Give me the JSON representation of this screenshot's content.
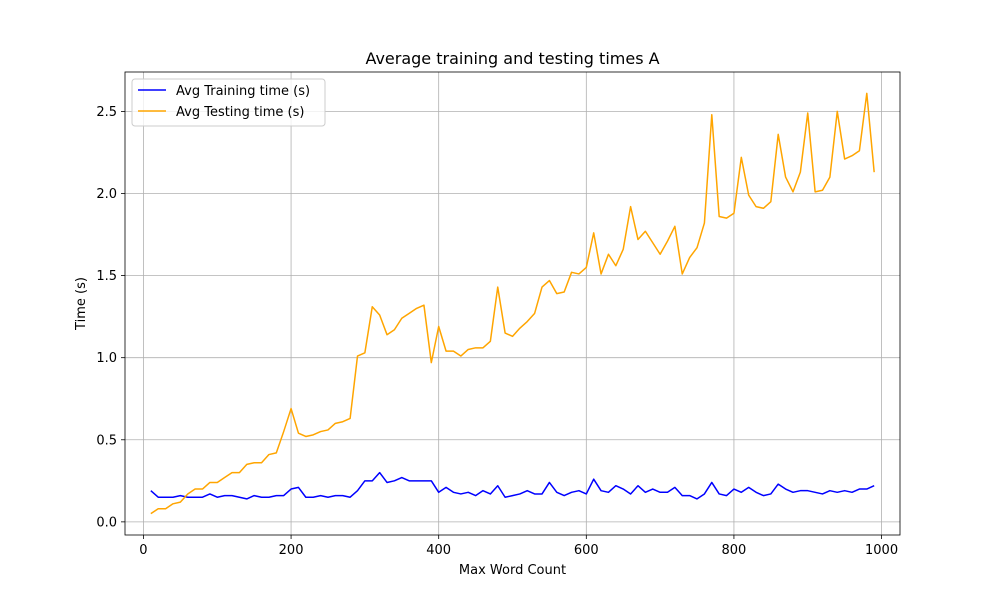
{
  "chart_data": {
    "type": "line",
    "title": "Average training and testing times A",
    "xlabel": "Max Word Count",
    "ylabel": "Time (s)",
    "xlim": [
      -25,
      1025
    ],
    "ylim": [
      -0.08,
      2.74
    ],
    "xticks": [
      0,
      200,
      400,
      600,
      800,
      1000
    ],
    "xtick_labels": [
      "0",
      "200",
      "400",
      "600",
      "800",
      "1000"
    ],
    "yticks": [
      0.0,
      0.5,
      1.0,
      1.5,
      2.0,
      2.5
    ],
    "ytick_labels": [
      "0.0",
      "0.5",
      "1.0",
      "1.5",
      "2.0",
      "2.5"
    ],
    "grid": true,
    "legend_position": "top-left",
    "x": [
      10,
      20,
      30,
      40,
      50,
      60,
      70,
      80,
      90,
      100,
      110,
      120,
      130,
      140,
      150,
      160,
      170,
      180,
      190,
      200,
      210,
      220,
      230,
      240,
      250,
      260,
      270,
      280,
      290,
      300,
      310,
      320,
      330,
      340,
      350,
      360,
      370,
      380,
      390,
      400,
      410,
      420,
      430,
      440,
      450,
      460,
      470,
      480,
      490,
      500,
      510,
      520,
      530,
      540,
      550,
      560,
      570,
      580,
      590,
      600,
      610,
      620,
      630,
      640,
      650,
      660,
      670,
      680,
      690,
      700,
      710,
      720,
      730,
      740,
      750,
      760,
      770,
      780,
      790,
      800,
      810,
      820,
      830,
      840,
      850,
      860,
      870,
      880,
      890,
      900,
      910,
      920,
      930,
      940,
      950,
      960,
      970,
      980,
      990
    ],
    "series": [
      {
        "name": "Avg Training time (s)",
        "color": "#0000ff",
        "values": [
          0.19,
          0.15,
          0.15,
          0.15,
          0.16,
          0.15,
          0.15,
          0.15,
          0.17,
          0.15,
          0.16,
          0.16,
          0.15,
          0.14,
          0.16,
          0.15,
          0.15,
          0.16,
          0.16,
          0.2,
          0.21,
          0.15,
          0.15,
          0.16,
          0.15,
          0.16,
          0.16,
          0.15,
          0.19,
          0.25,
          0.25,
          0.3,
          0.24,
          0.25,
          0.27,
          0.25,
          0.25,
          0.25,
          0.25,
          0.18,
          0.21,
          0.18,
          0.17,
          0.18,
          0.16,
          0.19,
          0.17,
          0.22,
          0.15,
          0.16,
          0.17,
          0.19,
          0.17,
          0.17,
          0.24,
          0.18,
          0.16,
          0.18,
          0.19,
          0.17,
          0.26,
          0.19,
          0.18,
          0.22,
          0.2,
          0.17,
          0.22,
          0.18,
          0.2,
          0.18,
          0.18,
          0.21,
          0.16,
          0.16,
          0.14,
          0.17,
          0.24,
          0.17,
          0.16,
          0.2,
          0.18,
          0.21,
          0.18,
          0.16,
          0.17,
          0.23,
          0.2,
          0.18,
          0.19,
          0.19,
          0.18,
          0.17,
          0.19,
          0.18,
          0.19,
          0.18,
          0.2,
          0.2,
          0.22
        ]
      },
      {
        "name": "Avg Testing time (s)",
        "color": "#ffa500",
        "values": [
          0.05,
          0.08,
          0.08,
          0.11,
          0.12,
          0.17,
          0.2,
          0.2,
          0.24,
          0.24,
          0.27,
          0.3,
          0.3,
          0.35,
          0.36,
          0.36,
          0.41,
          0.42,
          0.55,
          0.69,
          0.54,
          0.52,
          0.53,
          0.55,
          0.56,
          0.6,
          0.61,
          0.63,
          1.01,
          1.03,
          1.31,
          1.26,
          1.14,
          1.17,
          1.24,
          1.27,
          1.3,
          1.32,
          0.97,
          1.19,
          1.04,
          1.04,
          1.01,
          1.05,
          1.06,
          1.06,
          1.1,
          1.43,
          1.15,
          1.13,
          1.18,
          1.22,
          1.27,
          1.43,
          1.47,
          1.39,
          1.4,
          1.52,
          1.51,
          1.55,
          1.76,
          1.51,
          1.63,
          1.56,
          1.66,
          1.92,
          1.72,
          1.77,
          1.7,
          1.63,
          1.71,
          1.8,
          1.51,
          1.61,
          1.67,
          1.82,
          2.48,
          1.86,
          1.85,
          1.88,
          2.22,
          1.99,
          1.92,
          1.91,
          1.95,
          2.36,
          2.1,
          2.01,
          2.13,
          2.49,
          2.01,
          2.02,
          2.1,
          2.5,
          2.21,
          2.23,
          2.26,
          2.61,
          2.13
        ]
      }
    ]
  }
}
